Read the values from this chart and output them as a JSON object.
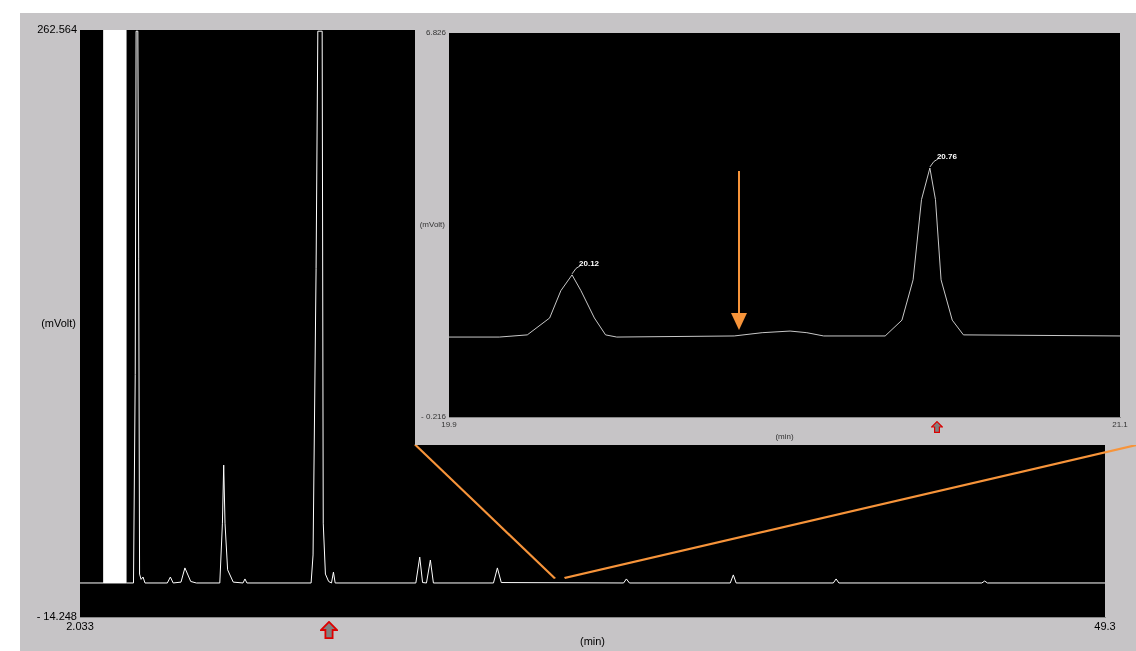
{
  "chart_data": [
    {
      "type": "line",
      "xlabel": "(min)",
      "ylabel": "(mVolt)",
      "color": "#ffffff",
      "xlim": [
        2.033,
        49.3
      ],
      "ylim": [
        -14.248,
        262.564
      ],
      "xticks": [
        2.033,
        49.3
      ],
      "yticks": [
        {
          "value": -14.248,
          "label": "- 14.248"
        },
        262.564
      ],
      "bands": [
        {
          "axis": "x",
          "from": 3.1,
          "to": 4.18,
          "color": "#ffffff"
        }
      ],
      "x": [
        2.033,
        3.1,
        4.18,
        4.5,
        4.58,
        4.62,
        4.7,
        4.74,
        4.78,
        4.85,
        4.94,
        5.03,
        6.06,
        6.2,
        6.33,
        6.69,
        6.87,
        7.14,
        7.4,
        8.48,
        8.6,
        8.66,
        8.72,
        8.84,
        9.1,
        9.55,
        9.64,
        9.73,
        12.69,
        12.78,
        12.92,
        13.0,
        13.2,
        13.25,
        13.35,
        13.5,
        13.63,
        13.72,
        13.8,
        17.52,
        17.7,
        17.83,
        18.01,
        18.19,
        18.33,
        21.1,
        21.28,
        21.46,
        27.1,
        27.23,
        27.37,
        32.02,
        32.16,
        32.29,
        36.77,
        36.9,
        37.03,
        43.62,
        43.75,
        43.88,
        49.3
      ],
      "values": [
        1.8,
        1.8,
        1.8,
        1.8,
        100,
        262,
        262,
        155,
        6,
        3.5,
        4.6,
        1.8,
        1.8,
        4.6,
        1.8,
        2.2,
        8.9,
        2.5,
        1.8,
        1.8,
        30,
        57.4,
        30,
        8,
        2.2,
        1.8,
        3.7,
        1.8,
        1.8,
        15,
        150,
        262,
        262,
        30,
        6,
        2.5,
        1.8,
        6.9,
        1.8,
        1.8,
        14,
        2,
        1.8,
        12.6,
        1.8,
        1.8,
        8.9,
        2,
        1.8,
        3.7,
        1.8,
        1.8,
        5.6,
        1.8,
        1.8,
        3.7,
        1.8,
        1.8,
        2.7,
        1.8,
        1.8
      ]
    },
    {
      "type": "line",
      "xlabel": "(min)",
      "ylabel": "(mVolt)",
      "color": "#c8c8c8",
      "xlim": [
        19.9,
        21.1
      ],
      "ylim": [
        -0.216,
        6.826
      ],
      "xticks": [
        19.9,
        21.1
      ],
      "yticks": [
        {
          "value": -0.216,
          "label": "- 0.216"
        },
        6.826
      ],
      "annotations": [
        {
          "text": "20.12",
          "x": 20.12,
          "y": 2.39
        },
        {
          "text": "20.76",
          "x": 20.76,
          "y": 4.35
        }
      ],
      "x": [
        19.9,
        19.99,
        20.04,
        20.08,
        20.1,
        20.12,
        20.136,
        20.16,
        20.18,
        20.2,
        20.41,
        20.46,
        20.51,
        20.54,
        20.57,
        20.68,
        20.71,
        20.73,
        20.745,
        20.76,
        20.77,
        20.78,
        20.8,
        20.82,
        21.1
      ],
      "values": [
        1.25,
        1.25,
        1.29,
        1.6,
        2.1,
        2.39,
        2.1,
        1.6,
        1.29,
        1.25,
        1.27,
        1.33,
        1.36,
        1.33,
        1.27,
        1.27,
        1.56,
        2.3,
        3.77,
        4.35,
        3.77,
        2.3,
        1.56,
        1.29,
        1.27
      ]
    }
  ]
}
